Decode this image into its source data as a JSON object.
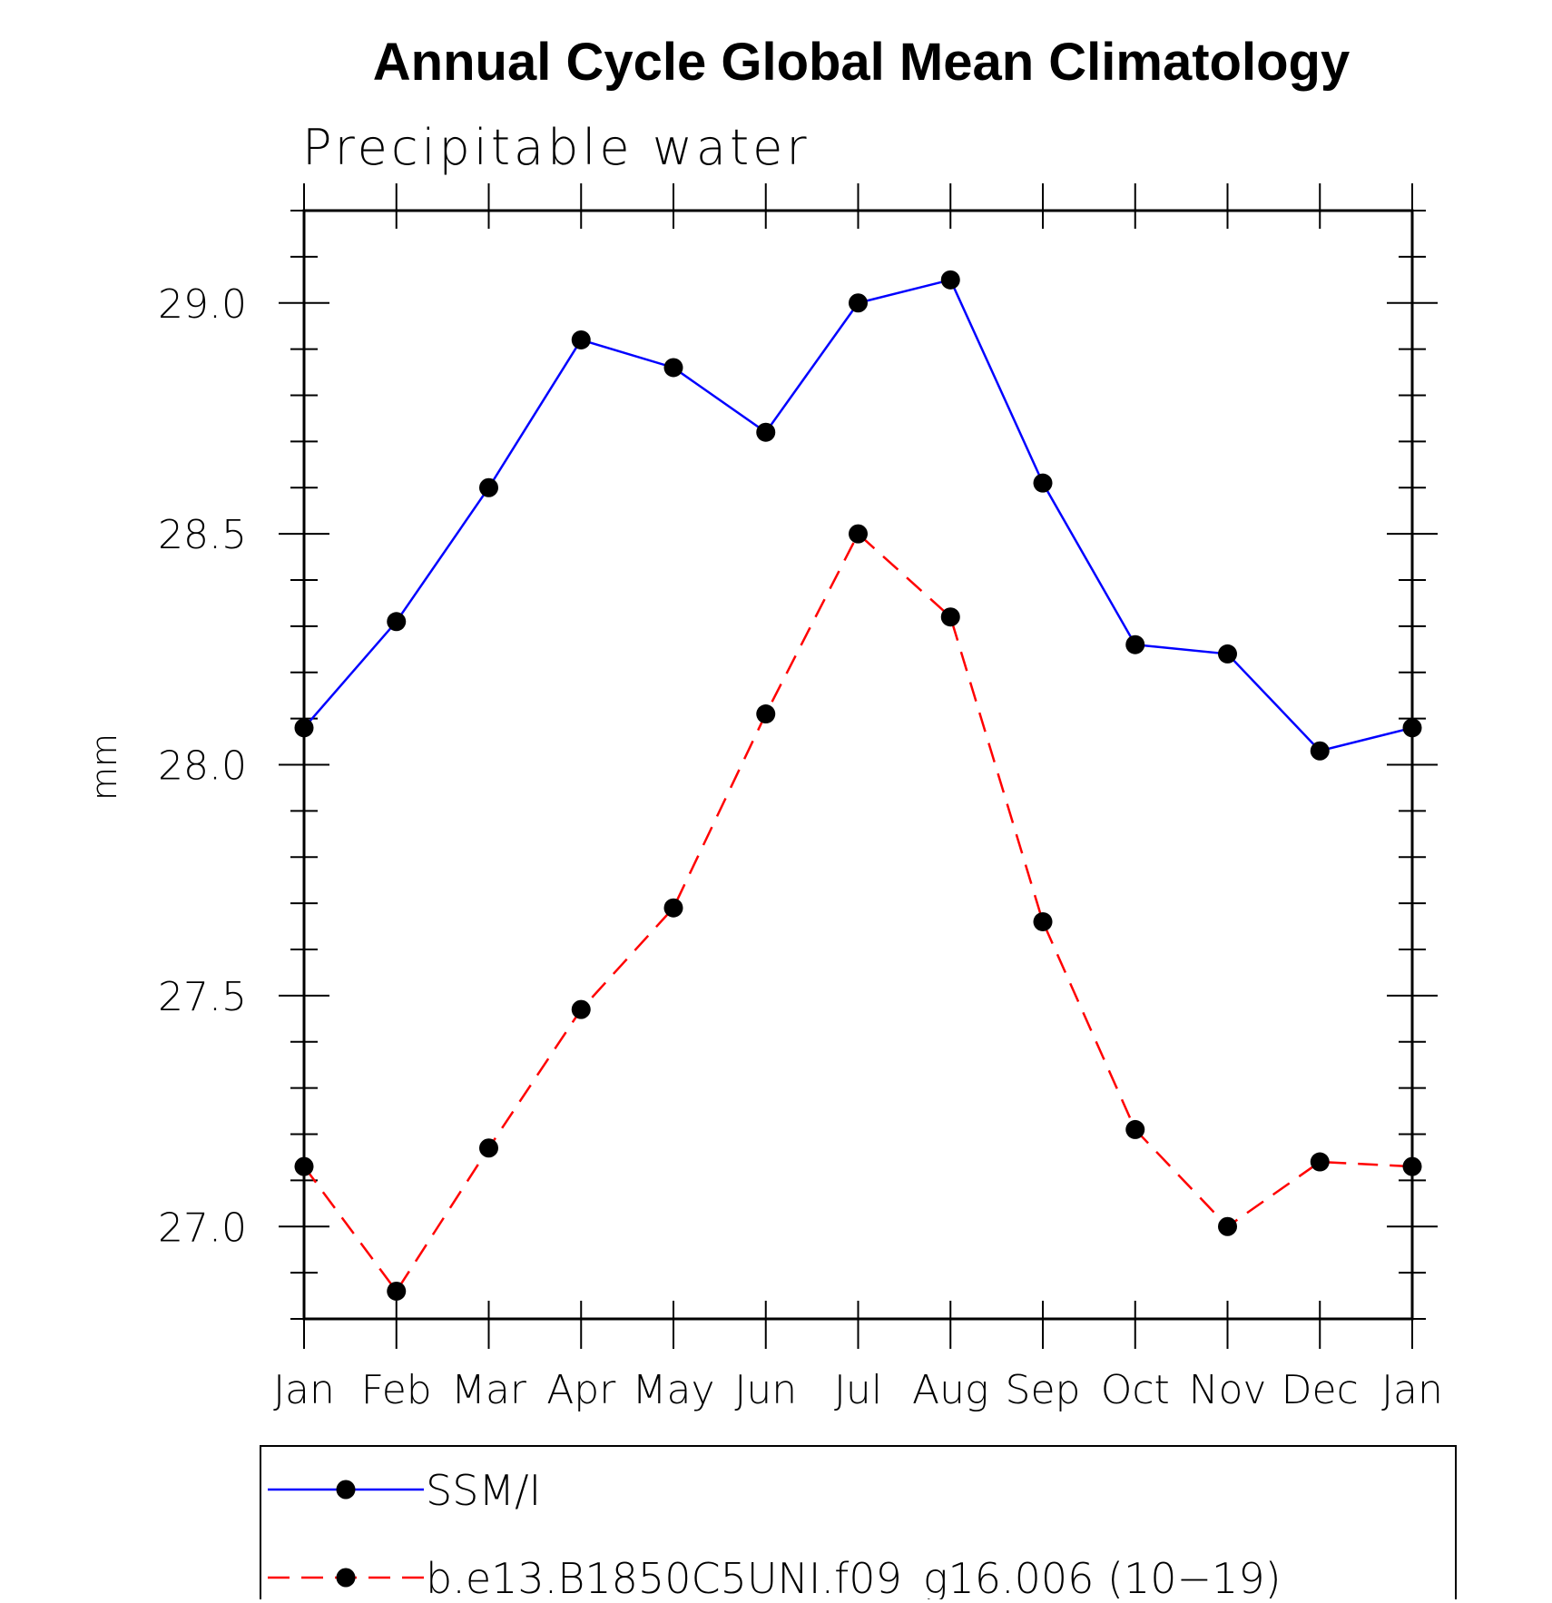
{
  "chart_data": {
    "type": "line",
    "title": "Annual Cycle Global Mean Climatology",
    "subtitle": "Precipitable water",
    "xlabel": "",
    "ylabel": "mm",
    "categories": [
      "Jan",
      "Feb",
      "Mar",
      "Apr",
      "May",
      "Jun",
      "Jul",
      "Aug",
      "Sep",
      "Oct",
      "Nov",
      "Dec",
      "Jan"
    ],
    "ylim": [
      26.8,
      29.2
    ],
    "yticks": [
      "27.0",
      "27.5",
      "28.0",
      "28.5",
      "29.0"
    ],
    "grid": false,
    "legend_position": "bottom",
    "series": [
      {
        "name": "SSM/I",
        "color": "#0000ff",
        "line_style": "solid",
        "marker": "filled-circle",
        "values": [
          28.08,
          28.31,
          28.6,
          28.92,
          28.86,
          28.72,
          29.0,
          29.05,
          28.61,
          28.26,
          28.24,
          28.03,
          28.08
        ]
      },
      {
        "name": "b.e13.B1850C5UNI.f09_g16.006 (10−19)",
        "color": "#ff0000",
        "line_style": "dashed",
        "marker": "filled-circle",
        "values": [
          27.13,
          26.86,
          27.17,
          27.47,
          27.69,
          28.11,
          28.5,
          28.32,
          27.66,
          27.21,
          27.0,
          27.14,
          27.13
        ]
      }
    ]
  }
}
